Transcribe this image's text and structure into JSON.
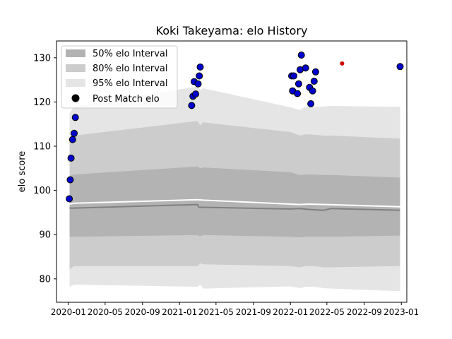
{
  "chart_data": {
    "type": "area",
    "title": "Koki Takeyama: elo History",
    "xlabel": "",
    "ylabel": "elo score",
    "xlim": [
      "2019-11-23",
      "2023-01-19"
    ],
    "ylim": [
      74.7,
      133.8
    ],
    "grid": false,
    "legend_position": "top-left",
    "x_ticks": [
      {
        "date": "2020-01-01",
        "label": "2020-01"
      },
      {
        "date": "2020-05-01",
        "label": "2020-05"
      },
      {
        "date": "2020-09-01",
        "label": "2020-09"
      },
      {
        "date": "2021-01-01",
        "label": "2021-01"
      },
      {
        "date": "2021-05-01",
        "label": "2021-05"
      },
      {
        "date": "2021-09-01",
        "label": "2021-09"
      },
      {
        "date": "2022-01-01",
        "label": "2022-01"
      },
      {
        "date": "2022-05-01",
        "label": "2022-05"
      },
      {
        "date": "2022-09-01",
        "label": "2022-09"
      },
      {
        "date": "2023-01-01",
        "label": "2023-01"
      }
    ],
    "y_ticks": [
      80,
      90,
      100,
      110,
      120,
      130
    ],
    "colors": {
      "band50": "#b3b3b3",
      "band80": "#cccccc",
      "band95": "#e5e5e5",
      "mean_line": "#ffffff",
      "median_line": "#808080",
      "marker_fill": "#0000cc",
      "marker_edge": "#000000",
      "latest_marker": "#cc0000"
    },
    "legend": [
      {
        "label": "50% elo Interval",
        "kind": "band",
        "color": "#b3b3b3"
      },
      {
        "label": "80% elo Interval",
        "kind": "band",
        "color": "#cccccc"
      },
      {
        "label": "95% elo Interval",
        "kind": "band",
        "color": "#e5e5e5"
      },
      {
        "label": "Post Match elo",
        "kind": "marker",
        "color": "#000000"
      }
    ],
    "bands": {
      "x": [
        "2020-01-05",
        "2020-01-20",
        "2021-03-01",
        "2021-03-10",
        "2021-03-20",
        "2022-01-01",
        "2022-02-01",
        "2022-02-20",
        "2022-03-20",
        "2022-04-20",
        "2022-05-15",
        "2022-12-28"
      ],
      "lower95": [
        78.2,
        78.7,
        78.2,
        78.7,
        77.8,
        78.3,
        77.9,
        78.2,
        78.2,
        77.9,
        77.8,
        77.2
      ],
      "upper95": [
        117.5,
        119.0,
        123.5,
        122.7,
        123.1,
        118.8,
        118.2,
        119.0,
        118.9,
        119.0,
        119.1,
        118.9
      ],
      "lower80": [
        82.2,
        82.9,
        82.9,
        83.5,
        83.3,
        82.9,
        82.6,
        82.9,
        82.9,
        82.6,
        82.6,
        82.9
      ],
      "upper80": [
        111.8,
        112.4,
        115.7,
        114.7,
        115.4,
        113.2,
        112.4,
        112.7,
        112.6,
        112.4,
        112.4,
        111.7
      ],
      "lower50": [
        89.5,
        89.5,
        89.9,
        89.6,
        89.9,
        89.5,
        89.4,
        89.5,
        89.5,
        89.5,
        89.5,
        89.8
      ],
      "upper50": [
        103.3,
        103.6,
        105.4,
        105.0,
        105.2,
        104.1,
        103.5,
        103.6,
        103.6,
        103.5,
        103.5,
        102.9
      ]
    },
    "mean_line": {
      "x": [
        "2020-01-05",
        "2020-01-20",
        "2021-03-01",
        "2021-03-20",
        "2022-01-01",
        "2022-02-01",
        "2022-03-01",
        "2022-05-01",
        "2022-12-28"
      ],
      "values": [
        96.9,
        97.1,
        97.9,
        97.8,
        96.9,
        96.8,
        96.9,
        96.8,
        96.3
      ]
    },
    "median_line": {
      "x": [
        "2020-01-05",
        "2020-01-20",
        "2021-03-01",
        "2021-03-05",
        "2022-01-01",
        "2022-02-01",
        "2022-03-01",
        "2022-04-20",
        "2022-05-15",
        "2022-12-28"
      ],
      "values": [
        96.0,
        96.0,
        96.8,
        96.2,
        95.8,
        95.9,
        95.7,
        95.5,
        95.9,
        95.5
      ]
    },
    "series": [
      {
        "name": "Post Match elo",
        "points": [
          {
            "x": "2020-01-04",
            "y": 98.1
          },
          {
            "x": "2020-01-07",
            "y": 102.4
          },
          {
            "x": "2020-01-10",
            "y": 107.3
          },
          {
            "x": "2020-01-15",
            "y": 111.5
          },
          {
            "x": "2020-01-20",
            "y": 112.9
          },
          {
            "x": "2020-01-24",
            "y": 116.5
          },
          {
            "x": "2021-02-10",
            "y": 119.2
          },
          {
            "x": "2021-02-14",
            "y": 121.3
          },
          {
            "x": "2021-02-18",
            "y": 124.6
          },
          {
            "x": "2021-02-23",
            "y": 121.8
          },
          {
            "x": "2021-03-03",
            "y": 124.1
          },
          {
            "x": "2021-03-07",
            "y": 125.9
          },
          {
            "x": "2021-03-10",
            "y": 127.9
          },
          {
            "x": "2022-01-05",
            "y": 125.9
          },
          {
            "x": "2022-01-08",
            "y": 122.5
          },
          {
            "x": "2022-01-12",
            "y": 125.9
          },
          {
            "x": "2022-01-24",
            "y": 121.9
          },
          {
            "x": "2022-01-28",
            "y": 124.1
          },
          {
            "x": "2022-02-02",
            "y": 127.3
          },
          {
            "x": "2022-02-06",
            "y": 130.6
          },
          {
            "x": "2022-02-20",
            "y": 127.7
          },
          {
            "x": "2022-03-05",
            "y": 123.3
          },
          {
            "x": "2022-03-09",
            "y": 119.6
          },
          {
            "x": "2022-03-15",
            "y": 122.5
          },
          {
            "x": "2022-03-20",
            "y": 124.7
          },
          {
            "x": "2022-03-25",
            "y": 126.8
          },
          {
            "x": "2022-12-28",
            "y": 128.0
          }
        ]
      },
      {
        "name": "",
        "points": [
          {
            "x": "2022-06-20",
            "y": 128.7
          }
        ]
      }
    ]
  }
}
